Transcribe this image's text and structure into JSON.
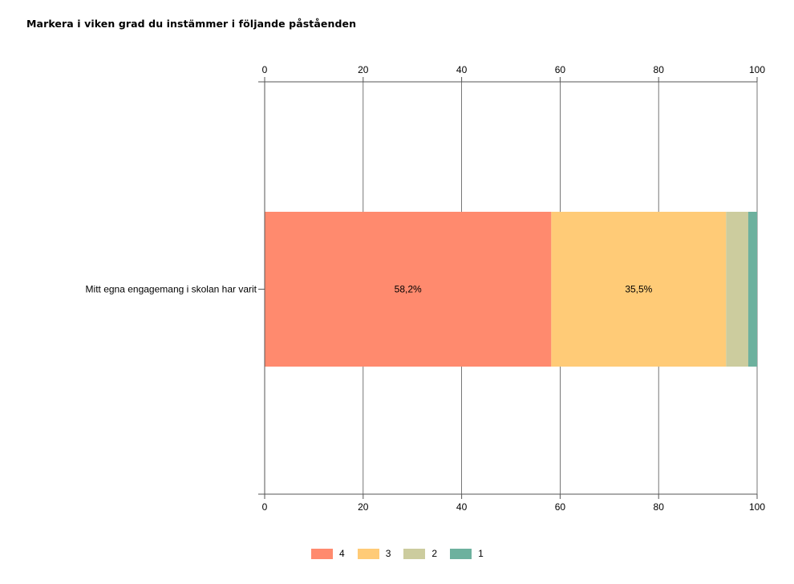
{
  "chart_data": {
    "type": "bar",
    "orientation": "horizontal",
    "stacked": true,
    "title": "Markera i viken grad du instämmer i följande påståenden",
    "categories": [
      "Mitt egna engagemang i skolan har varit"
    ],
    "series": [
      {
        "name": "4",
        "values": [
          58.2
        ],
        "label": "58,2%",
        "color": "#ff8a6e"
      },
      {
        "name": "3",
        "values": [
          35.5
        ],
        "label": "35,5%",
        "color": "#ffcb77"
      },
      {
        "name": "2",
        "values": [
          4.5
        ],
        "label": "",
        "color": "#cccc9e"
      },
      {
        "name": "1",
        "values": [
          1.8
        ],
        "label": "",
        "color": "#6db19e"
      }
    ],
    "xlim": [
      0,
      100
    ],
    "ticks": [
      "0",
      "20",
      "40",
      "60",
      "80",
      "100"
    ],
    "tick_values": [
      0,
      20,
      40,
      60,
      80,
      100
    ],
    "axis_position": "top-and-bottom",
    "grid": true,
    "legend_position": "bottom-center"
  }
}
